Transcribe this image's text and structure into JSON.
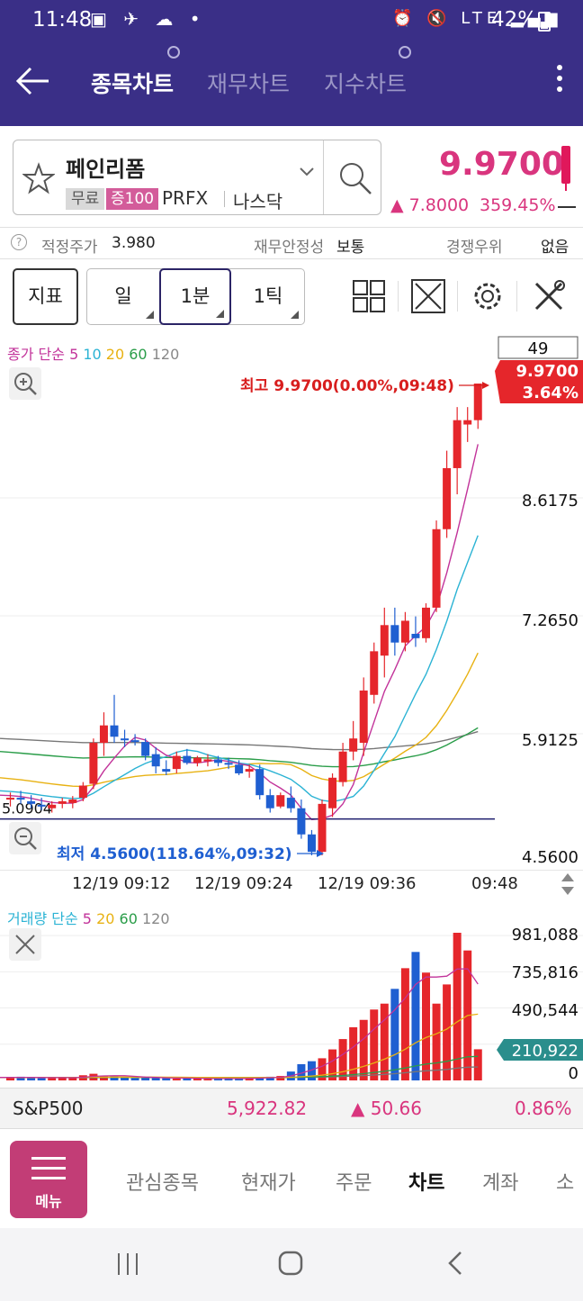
{
  "status_bar": {
    "time": "11:48",
    "left_icons": "▣ ✈ ☁ •",
    "right_icons": "⏰ 🔇 LTE ▂▄▆",
    "battery": "42%"
  },
  "header": {
    "tabs": [
      {
        "label": "종목차트",
        "active": true
      },
      {
        "label": "재무차트",
        "active": false
      },
      {
        "label": "지수차트",
        "active": false
      }
    ]
  },
  "stock": {
    "name": "페인리폼",
    "tag_free": "무료",
    "tag_margin": "증100",
    "code": "PRFX",
    "market": "나스닥",
    "price": "9.9700",
    "change": "▲ 7.8000",
    "change_pct": "359.45%"
  },
  "info_row": {
    "fair_label": "적정주가",
    "fair_value": "3.980",
    "stability_label": "재무안정성",
    "stability_value": "보통",
    "competition_label": "경쟁우위",
    "competition_value": "없음"
  },
  "toolbar": {
    "indicator": "지표",
    "periods": [
      "일",
      "1분",
      "1틱"
    ],
    "active_period": "1분"
  },
  "price_chart": {
    "legend_title": "종가 단순",
    "ma_periods": [
      "5",
      "10",
      "20",
      "60",
      "120"
    ],
    "count_box": "49",
    "current_price_label": "9.9700",
    "current_pct_label": "3.64%",
    "high_annotation": "최고 9.9700(0.00%,09:48)",
    "low_annotation": "최저 4.5600(118.64%,09:32)",
    "left_marker": "5.0904",
    "y_ticks": [
      "8.6175",
      "7.2650",
      "5.9125",
      "4.5600"
    ],
    "x_ticks": [
      "12/19 09:12",
      "12/19 09:24",
      "12/19 09:36",
      "09:48"
    ]
  },
  "volume_chart": {
    "legend_title": "거래량 단순",
    "ma_periods": [
      "5",
      "20",
      "60",
      "120"
    ],
    "y_ticks": [
      "981,088",
      "735,816",
      "490,544",
      "245,272",
      "0"
    ],
    "current_volume_label": "210,922"
  },
  "index_bar": {
    "name": "S&P500",
    "value": "5,922.82",
    "change": "▲  50.66",
    "change_pct": "0.86%"
  },
  "bottom_nav": {
    "menu_label": "메뉴",
    "items": [
      "관심종목",
      "현재가",
      "주문",
      "차트",
      "계좌",
      "소"
    ],
    "active": "차트"
  },
  "colors": {
    "header_bg": "#3a2f87",
    "up": "#e5262b",
    "down": "#1f5fd1",
    "accent_pink": "#d9357e",
    "ma5": "#c2339a",
    "ma10": "#2bb3d4",
    "ma20": "#e8b213",
    "ma60": "#2a9d49",
    "ma120": "#777777"
  },
  "chart_data": [
    {
      "type": "candlestick",
      "title": "",
      "x_ticks": [
        "12/19 09:12",
        "12/19 09:24",
        "12/19 09:36",
        "09:48"
      ],
      "ylim": [
        4.56,
        9.97
      ],
      "high": 9.97,
      "low": 4.56,
      "last": 9.97,
      "ohlc": [
        [
          5.2,
          5.28,
          5.12,
          5.22
        ],
        [
          5.22,
          5.3,
          5.15,
          5.2
        ],
        [
          5.18,
          5.25,
          5.1,
          5.15
        ],
        [
          5.14,
          5.22,
          5.08,
          5.12
        ],
        [
          5.1,
          5.18,
          5.05,
          5.14
        ],
        [
          5.15,
          5.22,
          5.1,
          5.18
        ],
        [
          5.16,
          5.24,
          5.1,
          5.2
        ],
        [
          5.22,
          5.4,
          5.18,
          5.36
        ],
        [
          5.38,
          5.9,
          5.32,
          5.85
        ],
        [
          5.85,
          6.2,
          5.7,
          6.05
        ],
        [
          6.05,
          6.4,
          5.85,
          5.92
        ],
        [
          5.9,
          6.0,
          5.8,
          5.88
        ],
        [
          5.88,
          5.95,
          5.82,
          5.86
        ],
        [
          5.86,
          5.9,
          5.65,
          5.7
        ],
        [
          5.72,
          5.8,
          5.5,
          5.58
        ],
        [
          5.55,
          5.65,
          5.48,
          5.52
        ],
        [
          5.55,
          5.75,
          5.5,
          5.7
        ],
        [
          5.7,
          5.78,
          5.6,
          5.62
        ],
        [
          5.62,
          5.7,
          5.58,
          5.68
        ],
        [
          5.66,
          5.72,
          5.58,
          5.66
        ],
        [
          5.66,
          5.7,
          5.58,
          5.62
        ],
        [
          5.62,
          5.68,
          5.55,
          5.6
        ],
        [
          5.6,
          5.65,
          5.48,
          5.5
        ],
        [
          5.52,
          5.6,
          5.45,
          5.55
        ],
        [
          5.55,
          5.6,
          5.2,
          5.25
        ],
        [
          5.25,
          5.32,
          5.05,
          5.1
        ],
        [
          5.12,
          5.28,
          5.1,
          5.25
        ],
        [
          5.22,
          5.35,
          5.05,
          5.1
        ],
        [
          5.1,
          5.2,
          4.75,
          4.8
        ],
        [
          4.8,
          4.85,
          4.56,
          4.6
        ],
        [
          4.6,
          5.2,
          4.56,
          5.15
        ],
        [
          5.1,
          5.5,
          5.0,
          5.45
        ],
        [
          5.4,
          5.85,
          5.35,
          5.75
        ],
        [
          5.75,
          6.1,
          5.65,
          5.9
        ],
        [
          5.85,
          6.6,
          5.7,
          6.45
        ],
        [
          6.4,
          7.0,
          6.3,
          6.9
        ],
        [
          6.85,
          7.4,
          6.6,
          7.2
        ],
        [
          7.2,
          7.4,
          6.85,
          7.0
        ],
        [
          7.0,
          7.35,
          6.9,
          7.25
        ],
        [
          7.1,
          7.3,
          6.95,
          7.05
        ],
        [
          7.05,
          7.45,
          7.0,
          7.4
        ],
        [
          7.4,
          8.4,
          7.35,
          8.3
        ],
        [
          8.3,
          9.2,
          8.2,
          9.0
        ],
        [
          9.0,
          9.7,
          8.7,
          9.55
        ],
        [
          9.5,
          9.7,
          9.3,
          9.55
        ],
        [
          9.55,
          9.97,
          9.45,
          9.97
        ]
      ]
    },
    {
      "type": "bar",
      "title": "",
      "ylim": [
        0,
        981088
      ],
      "y_ticks": [
        "981,088",
        "735,816",
        "490,544",
        "245,272",
        "0"
      ],
      "last": 210922,
      "values": [
        20000,
        25000,
        18000,
        15000,
        15000,
        22000,
        20000,
        35000,
        45000,
        30000,
        28000,
        20000,
        15000,
        20000,
        18000,
        15000,
        12000,
        15000,
        12000,
        10000,
        12000,
        15000,
        12000,
        18000,
        20000,
        25000,
        30000,
        60000,
        110000,
        130000,
        150000,
        210000,
        280000,
        360000,
        410000,
        480000,
        520000,
        620000,
        760000,
        870000,
        730000,
        520000,
        650000,
        1000000,
        880000,
        210922
      ]
    }
  ]
}
